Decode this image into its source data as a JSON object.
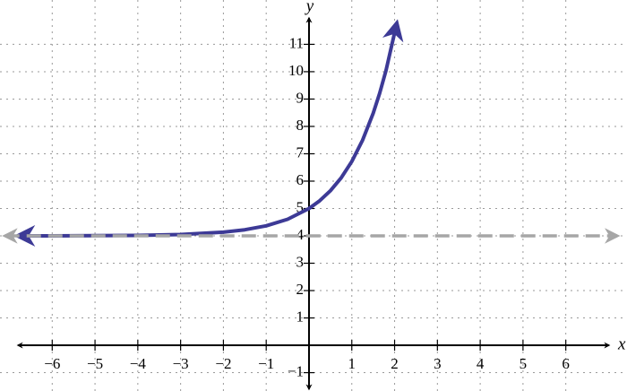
{
  "chart_data": {
    "type": "line",
    "x_label": "x",
    "y_label": "y",
    "xlim": [
      -7.22,
      7.43
    ],
    "ylim": [
      -1.67,
      12.62
    ],
    "xticks": [
      {
        "value": -6,
        "label": "−6"
      },
      {
        "value": -5,
        "label": "−5"
      },
      {
        "value": -4,
        "label": "−4"
      },
      {
        "value": -3,
        "label": "−3"
      },
      {
        "value": -2,
        "label": "−2"
      },
      {
        "value": -1,
        "label": "−1"
      },
      1,
      2,
      3,
      4,
      5,
      6
    ],
    "yticks": [
      {
        "value": -1,
        "label": "−1"
      },
      1,
      2,
      3,
      4,
      5,
      6,
      7,
      8,
      9,
      10,
      11
    ],
    "grid": true,
    "series": [
      {
        "color": "#3d3a96",
        "style": "solid",
        "x": [
          -6.8,
          -6,
          -5,
          -4,
          -3,
          -2,
          -1.5,
          -1,
          -0.5,
          0,
          0.25,
          0.5,
          0.75,
          1,
          1.25,
          1.5,
          1.65,
          1.8,
          2.05
        ],
        "values": [
          4.001,
          4.002,
          4.007,
          4.018,
          4.05,
          4.135,
          4.223,
          4.368,
          4.607,
          5,
          5.284,
          5.649,
          6.117,
          6.718,
          7.49,
          8.482,
          9.207,
          10.05,
          11.768
        ]
      },
      {
        "color": "#a6a6a6",
        "style": "dashed",
        "x": [
          -7.1,
          7.2
        ],
        "values": [
          4,
          4
        ]
      }
    ]
  }
}
